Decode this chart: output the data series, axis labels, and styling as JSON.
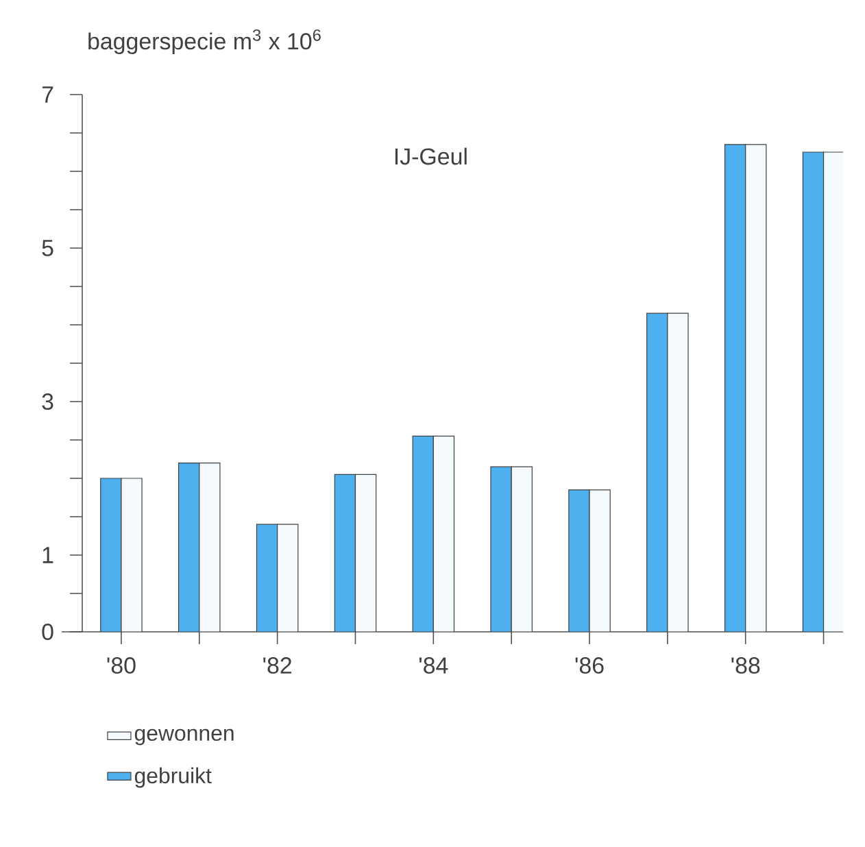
{
  "chart_data": {
    "type": "bar",
    "title": "IJ-Geul",
    "ylabel": "baggerspecie  m$^{3}$ x 10$^{6}$",
    "categories": [
      "'80",
      null,
      "'82",
      null,
      "'84",
      null,
      "'86",
      null,
      "'88",
      null
    ],
    "series": [
      {
        "name": "gebruikt",
        "color": "#4fb0f0",
        "values": [
          2.0,
          2.2,
          1.4,
          2.05,
          2.55,
          2.15,
          1.85,
          4.15,
          6.35,
          6.25
        ]
      },
      {
        "name": "gewonnen",
        "color": "#f4fafd",
        "values": [
          2.0,
          2.2,
          1.4,
          2.05,
          2.55,
          2.15,
          1.85,
          4.15,
          6.35,
          6.25
        ]
      }
    ],
    "ylim": [
      0,
      7
    ],
    "yticks": [
      0,
      {
        "value": 0.5,
        "label": null
      },
      1,
      {
        "value": 1.5,
        "label": null
      },
      {
        "value": 2,
        "label": null
      },
      {
        "value": 2.5,
        "label": null
      },
      3,
      {
        "value": 3.5,
        "label": null
      },
      {
        "value": 4,
        "label": null
      },
      {
        "value": 4.5,
        "label": null
      },
      5,
      {
        "value": 5.5,
        "label": null
      },
      {
        "value": 6,
        "label": null
      },
      {
        "value": 6.5,
        "label": null
      },
      7
    ],
    "legend": "bottom left"
  }
}
